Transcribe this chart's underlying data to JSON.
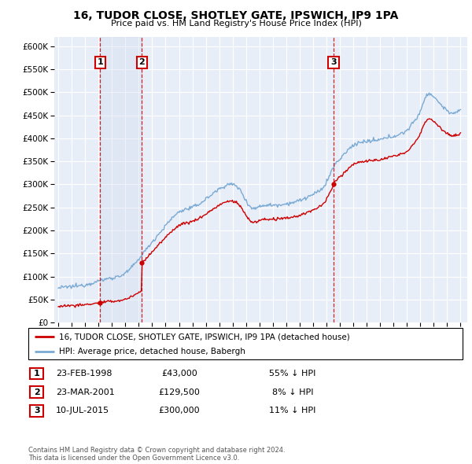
{
  "title": "16, TUDOR CLOSE, SHOTLEY GATE, IPSWICH, IP9 1PA",
  "subtitle": "Price paid vs. HM Land Registry's House Price Index (HPI)",
  "background_color": "#ffffff",
  "plot_bg_color": "#e8eef8",
  "grid_color": "#ffffff",
  "hpi_line_color": "#7aaad4",
  "price_line_color": "#cc0000",
  "shaded_color": "#ccd9ee",
  "ylim": [
    0,
    620000
  ],
  "yticks": [
    0,
    50000,
    100000,
    150000,
    200000,
    250000,
    300000,
    350000,
    400000,
    450000,
    500000,
    550000,
    600000
  ],
  "ytick_labels": [
    "£0",
    "£50K",
    "£100K",
    "£150K",
    "£200K",
    "£250K",
    "£300K",
    "£350K",
    "£400K",
    "£450K",
    "£500K",
    "£550K",
    "£600K"
  ],
  "sales": [
    {
      "date_num": 1998.12,
      "price": 43000,
      "label": "1"
    },
    {
      "date_num": 2001.23,
      "price": 129500,
      "label": "2"
    },
    {
      "date_num": 2015.53,
      "price": 300000,
      "label": "3"
    }
  ],
  "sale_dates": [
    "23-FEB-1998",
    "23-MAR-2001",
    "10-JUL-2015"
  ],
  "sale_prices": [
    "£43,000",
    "£129,500",
    "£300,000"
  ],
  "sale_hpi_diff": [
    "55% ↓ HPI",
    "8% ↓ HPI",
    "11% ↓ HPI"
  ],
  "legend_price_label": "16, TUDOR CLOSE, SHOTLEY GATE, IPSWICH, IP9 1PA (detached house)",
  "legend_hpi_label": "HPI: Average price, detached house, Babergh",
  "footer": "Contains HM Land Registry data © Crown copyright and database right 2024.\nThis data is licensed under the Open Government Licence v3.0.",
  "xmin": 1994.7,
  "xmax": 2025.5
}
